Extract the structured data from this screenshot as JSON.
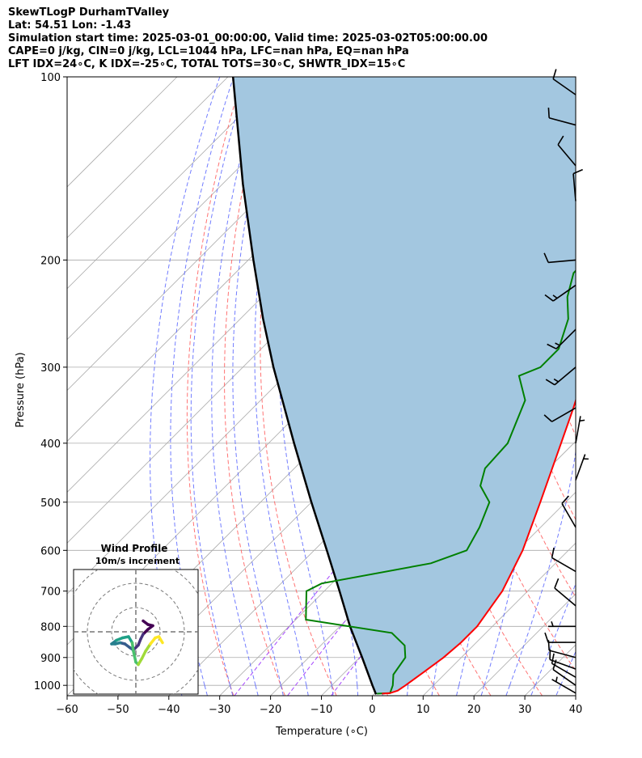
{
  "header": {
    "lines": [
      "SkewTLogP DurhamTValley",
      "Lat: 54.51   Lon: -1.43",
      "Simulation start time: 2025-03-01_00:00:00, Valid time: 2025-03-02T05:00:00.00",
      "CAPE=0 j/kg, CIN=0 j/kg, LCL=1044 hPa, LFC=nan hPa, EQ=nan hPa",
      "LFT IDX=24∘C, K IDX=-25∘C, TOTAL TOTS=30∘C, SHWTR_IDX=15∘C"
    ]
  },
  "chart_data": {
    "type": "line",
    "chart_kind": "skew-T log-P",
    "xlabel": "Temperature (∘C)",
    "ylabel": "Pressure (hPa)",
    "xlim": [
      -60,
      40
    ],
    "ylim": [
      1040,
      100
    ],
    "y_scale": "log",
    "grid": true,
    "x_ticks": [
      -60,
      -50,
      -40,
      -30,
      -20,
      -10,
      0,
      10,
      20,
      30,
      40
    ],
    "y_ticks": [
      100,
      200,
      300,
      400,
      500,
      600,
      700,
      800,
      900,
      1000
    ],
    "colors": {
      "temperature": "#ff0000",
      "dewpoint": "#008000",
      "parcel": "#000000",
      "cin_shade": "#a3c7e0",
      "dry_adiabats": "#ff5a5a",
      "moist_adiabats": "#4f5cff",
      "isotherms": "#aaaaaa",
      "mixing_ratio": "#9b30ff"
    },
    "series": [
      {
        "key": "temperature",
        "points": [
          {
            "p": 1032,
            "t": 1.5
          },
          {
            "p": 1030,
            "t": 3.0
          },
          {
            "p": 1020,
            "t": 4.0
          },
          {
            "p": 1000,
            "t": 4.5
          },
          {
            "p": 950,
            "t": 5.5
          },
          {
            "p": 900,
            "t": 6.5
          },
          {
            "p": 850,
            "t": 7.0
          },
          {
            "p": 800,
            "t": 7.0
          },
          {
            "p": 700,
            "t": 5.0
          },
          {
            "p": 600,
            "t": 1.0
          },
          {
            "p": 500,
            "t": -5.0
          },
          {
            "p": 400,
            "t": -12.5
          },
          {
            "p": 350,
            "t": -17.0
          },
          {
            "p": 300,
            "t": -22.5
          },
          {
            "p": 250,
            "t": -29.0
          },
          {
            "p": 220,
            "t": -33.5
          },
          {
            "p": 200,
            "t": -37.5
          },
          {
            "p": 180,
            "t": -39.0
          },
          {
            "p": 165,
            "t": -39.5
          },
          {
            "p": 150,
            "t": -32.5
          },
          {
            "p": 140,
            "t": -34.5
          },
          {
            "p": 130,
            "t": -38.5
          },
          {
            "p": 120,
            "t": -43.0
          },
          {
            "p": 110,
            "t": -48.0
          },
          {
            "p": 100,
            "t": -54.5
          }
        ]
      },
      {
        "key": "dewpoint",
        "points": [
          {
            "p": 1032,
            "t": 0.5
          },
          {
            "p": 1030,
            "t": 3.0
          },
          {
            "p": 1000,
            "t": 2.0
          },
          {
            "p": 960,
            "t": 0.0
          },
          {
            "p": 900,
            "t": -1.0
          },
          {
            "p": 860,
            "t": -3.5
          },
          {
            "p": 820,
            "t": -8.5
          },
          {
            "p": 780,
            "t": -28.0
          },
          {
            "p": 700,
            "t": -33.5
          },
          {
            "p": 680,
            "t": -32.0
          },
          {
            "p": 630,
            "t": -14.5
          },
          {
            "p": 600,
            "t": -10.0
          },
          {
            "p": 550,
            "t": -12.0
          },
          {
            "p": 500,
            "t": -15.0
          },
          {
            "p": 470,
            "t": -20.0
          },
          {
            "p": 440,
            "t": -22.5
          },
          {
            "p": 400,
            "t": -23.0
          },
          {
            "p": 340,
            "t": -28.0
          },
          {
            "p": 310,
            "t": -34.0
          },
          {
            "p": 300,
            "t": -31.5
          },
          {
            "p": 280,
            "t": -31.5
          },
          {
            "p": 250,
            "t": -35.5
          },
          {
            "p": 230,
            "t": -40.0
          },
          {
            "p": 210,
            "t": -43.5
          },
          {
            "p": 200,
            "t": -43.5
          },
          {
            "p": 180,
            "t": -44.0
          },
          {
            "p": 160,
            "t": -46.0
          },
          {
            "p": 150,
            "t": -48.0
          },
          {
            "p": 140,
            "t": -49.5
          },
          {
            "p": 130,
            "t": -51.0
          },
          {
            "p": 120,
            "t": -54.0
          },
          {
            "p": 110,
            "t": -58.0
          },
          {
            "p": 100,
            "t": -62.0
          }
        ]
      },
      {
        "key": "parcel",
        "points": [
          {
            "p": 1035,
            "t": 0.5
          },
          {
            "p": 1000,
            "t": -2.0
          },
          {
            "p": 900,
            "t": -9.5
          },
          {
            "p": 800,
            "t": -18.0
          },
          {
            "p": 700,
            "t": -27.0
          },
          {
            "p": 600,
            "t": -37.5
          },
          {
            "p": 500,
            "t": -50.0
          },
          {
            "p": 400,
            "t": -65.0
          },
          {
            "p": 300,
            "t": -84.0
          },
          {
            "p": 250,
            "t": -95.5
          },
          {
            "p": 200,
            "t": -109.0
          },
          {
            "p": 150,
            "t": -126.0
          },
          {
            "p": 100,
            "t": -149.0
          }
        ]
      }
    ],
    "wind_barbs": [
      {
        "p": 1030,
        "speed_kt": 5,
        "dir_deg": 300
      },
      {
        "p": 1000,
        "speed_kt": 10,
        "dir_deg": 305
      },
      {
        "p": 970,
        "speed_kt": 10,
        "dir_deg": 300
      },
      {
        "p": 940,
        "speed_kt": 10,
        "dir_deg": 290
      },
      {
        "p": 900,
        "speed_kt": 10,
        "dir_deg": 285
      },
      {
        "p": 850,
        "speed_kt": 10,
        "dir_deg": 270
      },
      {
        "p": 800,
        "speed_kt": 5,
        "dir_deg": 270
      },
      {
        "p": 740,
        "speed_kt": 10,
        "dir_deg": 310
      },
      {
        "p": 650,
        "speed_kt": 10,
        "dir_deg": 300
      },
      {
        "p": 550,
        "speed_kt": 10,
        "dir_deg": 330
      },
      {
        "p": 460,
        "speed_kt": 5,
        "dir_deg": 20
      },
      {
        "p": 400,
        "speed_kt": 5,
        "dir_deg": 10
      },
      {
        "p": 350,
        "speed_kt": 10,
        "dir_deg": 240
      },
      {
        "p": 300,
        "speed_kt": 15,
        "dir_deg": 230
      },
      {
        "p": 260,
        "speed_kt": 15,
        "dir_deg": 225
      },
      {
        "p": 220,
        "speed_kt": 15,
        "dir_deg": 235
      },
      {
        "p": 200,
        "speed_kt": 10,
        "dir_deg": 265
      },
      {
        "p": 160,
        "speed_kt": 10,
        "dir_deg": 355
      },
      {
        "p": 140,
        "speed_kt": 10,
        "dir_deg": 320
      },
      {
        "p": 120,
        "speed_kt": 10,
        "dir_deg": 285
      },
      {
        "p": 107,
        "speed_kt": 10,
        "dir_deg": 305
      }
    ],
    "inset": {
      "title": "Wind Profile",
      "subtitle": "10m/s increment",
      "hodograph_uv": [
        [
          0.6,
          0.9
        ],
        [
          1.0,
          0.6
        ],
        [
          1.4,
          0.5
        ],
        [
          1.0,
          0.2
        ],
        [
          0.6,
          -0.2
        ],
        [
          0.4,
          -0.6
        ],
        [
          0.2,
          -1.1
        ],
        [
          -0.2,
          -1.5
        ],
        [
          -0.5,
          -1.3
        ],
        [
          -0.9,
          -1.0
        ],
        [
          -1.3,
          -0.9
        ],
        [
          -1.7,
          -1.0
        ],
        [
          -2.0,
          -1.0
        ],
        [
          -1.6,
          -0.7
        ],
        [
          -1.1,
          -0.5
        ],
        [
          -0.6,
          -0.4
        ],
        [
          -0.3,
          -0.9
        ],
        [
          -0.2,
          -1.6
        ],
        [
          0.0,
          -2.5
        ],
        [
          0.2,
          -2.7
        ],
        [
          0.5,
          -2.2
        ],
        [
          0.8,
          -1.6
        ],
        [
          1.2,
          -1.0
        ],
        [
          1.6,
          -0.5
        ],
        [
          1.9,
          -0.4
        ],
        [
          2.2,
          -0.9
        ]
      ]
    }
  }
}
